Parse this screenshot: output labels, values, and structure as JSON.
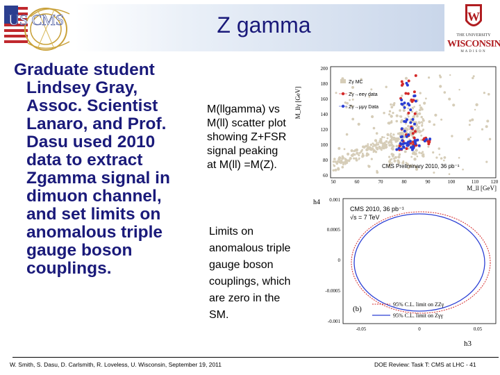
{
  "slide": {
    "title": "Z gamma",
    "logos": {
      "cms_text": "US CMS",
      "uw_line1": "THE UNIVERSITY",
      "uw_line2": "WISCONSIN",
      "uw_line3": "MADISON"
    },
    "main_text_lines": [
      "Graduate student",
      "Lindsey Gray,",
      "Assoc. Scientist",
      "Lanaro, and Prof.",
      "Dasu used 2010",
      "data to extract",
      "Zgamma signal in",
      "dimuon channel,",
      "and set limits on",
      "anomalous triple",
      "gauge boson",
      "couplings."
    ],
    "desc1_lines": [
      "M(llgamma) vs",
      "M(ll) scatter plot",
      "showing Z+FSR",
      "signal peaking",
      "at M(ll) =M(Z)."
    ],
    "desc2_lines": [
      "Limits on",
      "anomalous triple",
      "gauge boson",
      "couplings, which",
      "are zero in the",
      "SM."
    ],
    "footer_left": "W. Smith, S. Dasu, D. Carlsmith, R. Loveless, U. Wisconsin, September 19, 2011",
    "footer_right": "DOE Review: Task T: CMS at LHC - 41"
  },
  "plot1": {
    "ylabel": "M_llγ [GeV]",
    "xlabel": "M_ll [GeV]",
    "yticks": [
      "200",
      "180",
      "160",
      "140",
      "120",
      "100",
      "80",
      "60"
    ],
    "xticks": [
      "50",
      "60",
      "70",
      "80",
      "90",
      "100",
      "110",
      "120"
    ],
    "legend": [
      "Zγ MC",
      "Zγ→eeγ data",
      "Zγ→μμγ Data"
    ],
    "annotation": "CMS Preliminary 2010, 36 pb⁻¹",
    "colors": {
      "mc": "#d6cdb8",
      "ee": "#d42a2a",
      "mumu": "#2a3ed4"
    }
  },
  "plot2": {
    "ylabel": "h4",
    "xlabel": "h3",
    "yticks": [
      "0.001",
      "0.0005",
      "0",
      "-0.0005",
      "-0.001"
    ],
    "xticks": [
      "-0.05",
      "0",
      "0.05"
    ],
    "annotation1": "CMS 2010, 36 pb⁻¹",
    "annotation2": "√s = 7 TeV",
    "panel_label": "(b)",
    "legend": [
      "95% C.L. limit on ZZγ",
      "95% C.L. limit on Zγγ"
    ],
    "colors": {
      "zzg": "#d42a2a",
      "zgg": "#2a3ed4"
    }
  }
}
